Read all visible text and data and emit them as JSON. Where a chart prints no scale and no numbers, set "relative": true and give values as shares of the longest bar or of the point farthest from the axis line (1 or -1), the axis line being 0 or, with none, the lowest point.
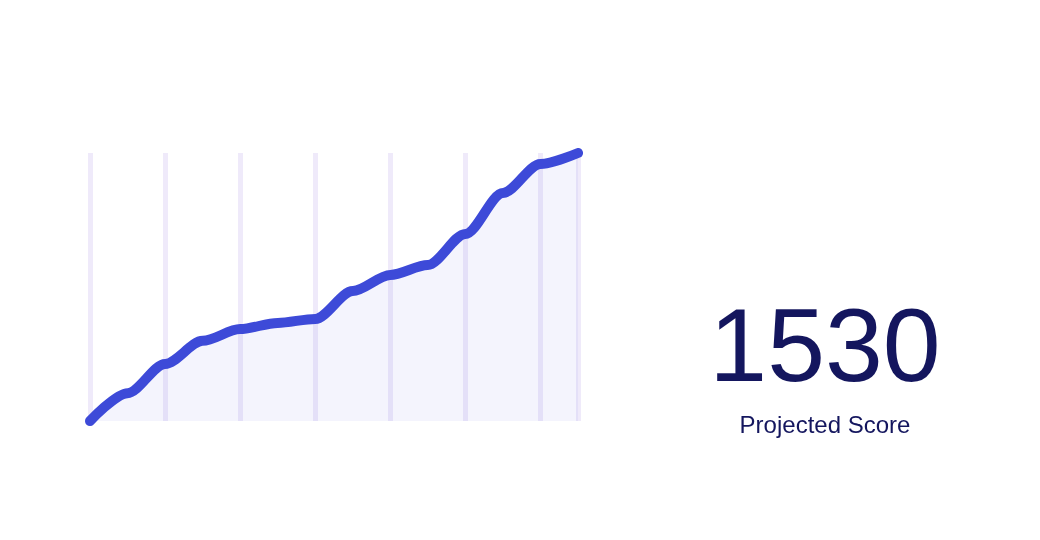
{
  "chart_data": [
    {
      "type": "area",
      "relative": true,
      "categories": [
        null,
        null,
        null,
        null,
        null,
        null,
        null,
        null,
        null,
        null,
        null,
        null,
        null,
        null
      ],
      "series": [
        {
          "color": "#3d4ad8",
          "values": [
            0,
            0.104,
            0.213,
            0.299,
            0.343,
            0.366,
            0.381,
            0.485,
            0.545,
            0.582,
            0.698,
            0.851,
            0.959,
            1
          ]
        }
      ],
      "grid": "x",
      "tick_labels": false
    },
    {
      "type": "other",
      "title": "1530",
      "subtitle": "Projected Score"
    }
  ]
}
